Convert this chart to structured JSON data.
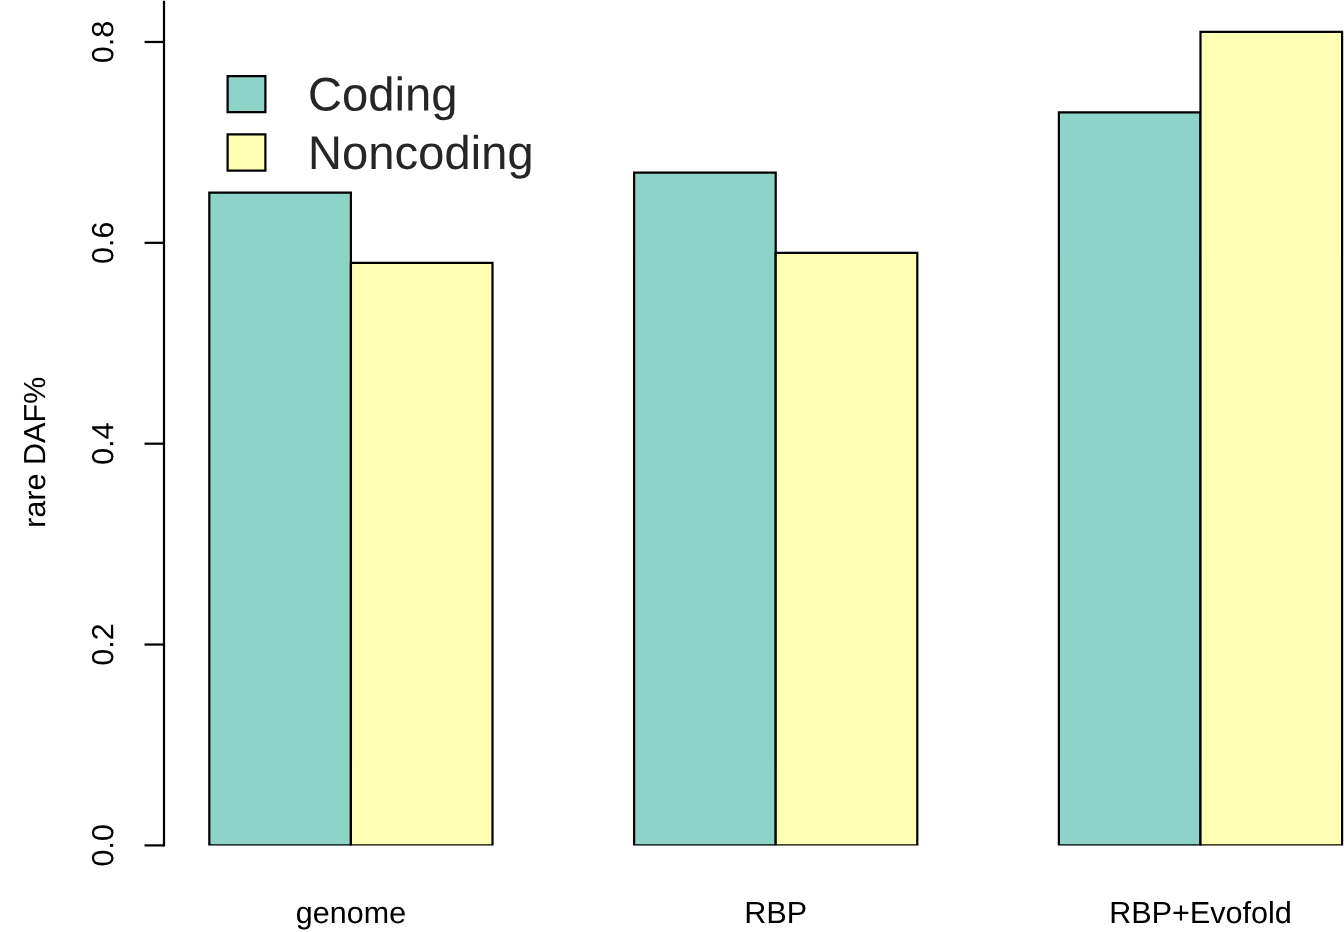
{
  "chart_data": {
    "type": "bar",
    "ylabel": "rare DAF%",
    "categories": [
      "genome",
      "RBP",
      "RBP+Evofold"
    ],
    "series": [
      {
        "name": "Coding",
        "color": "#8dd3c7",
        "values": [
          0.65,
          0.67,
          0.73
        ]
      },
      {
        "name": "Noncoding",
        "color": "#ffffb3",
        "values": [
          0.58,
          0.59,
          0.81
        ]
      }
    ],
    "ylim": [
      0,
      0.84
    ],
    "yticks": [
      {
        "value": 0,
        "label": "0.0"
      },
      0.2,
      0.4,
      0.6,
      0.8
    ],
    "legend": "top left"
  }
}
